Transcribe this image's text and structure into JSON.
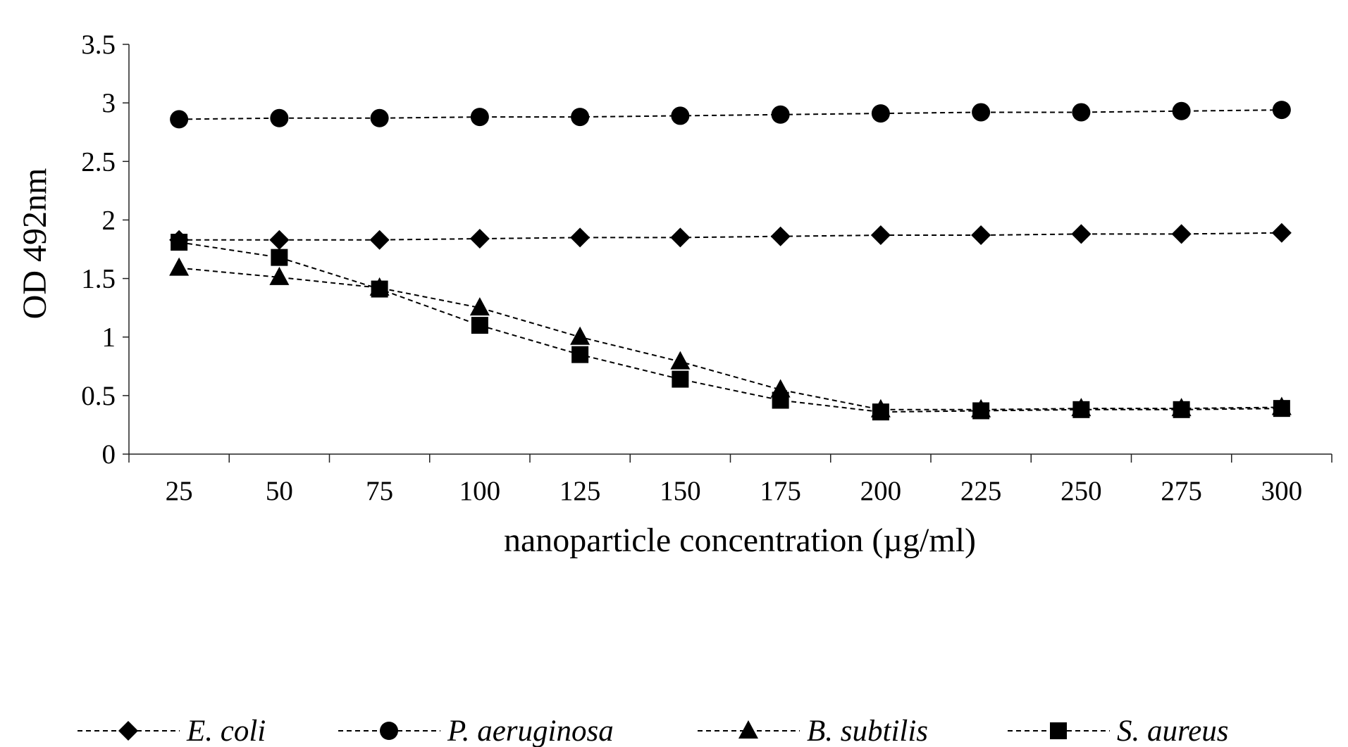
{
  "chart_data": {
    "type": "line",
    "title": "",
    "xlabel": "nanoparticle concentration (µg/ml)",
    "ylabel": "OD 492nm",
    "categories": [
      "25",
      "50",
      "75",
      "100",
      "125",
      "150",
      "175",
      "200",
      "225",
      "250",
      "275",
      "300"
    ],
    "ylim": [
      0,
      3.5
    ],
    "yticks": [
      "0",
      "0.5",
      "1",
      "1.5",
      "2",
      "2.5",
      "3",
      "3.5"
    ],
    "grid": false,
    "legend_position": "bottom",
    "series": [
      {
        "name": "E. coli",
        "marker": "diamond",
        "values": [
          1.83,
          1.83,
          1.83,
          1.84,
          1.85,
          1.85,
          1.86,
          1.87,
          1.87,
          1.88,
          1.88,
          1.89
        ]
      },
      {
        "name": "P. aeruginosa",
        "marker": "circle",
        "values": [
          2.86,
          2.87,
          2.87,
          2.88,
          2.88,
          2.89,
          2.9,
          2.91,
          2.92,
          2.92,
          2.93,
          2.94
        ]
      },
      {
        "name": "B. subtilis",
        "marker": "triangle",
        "values": [
          1.59,
          1.51,
          1.42,
          1.25,
          1.0,
          0.79,
          0.55,
          0.38,
          0.38,
          0.39,
          0.39,
          0.4
        ]
      },
      {
        "name": "S. aureus",
        "marker": "square",
        "values": [
          1.81,
          1.68,
          1.41,
          1.1,
          0.85,
          0.64,
          0.46,
          0.36,
          0.37,
          0.38,
          0.38,
          0.39
        ]
      }
    ],
    "line_style": "dashed",
    "color": "#000000"
  }
}
